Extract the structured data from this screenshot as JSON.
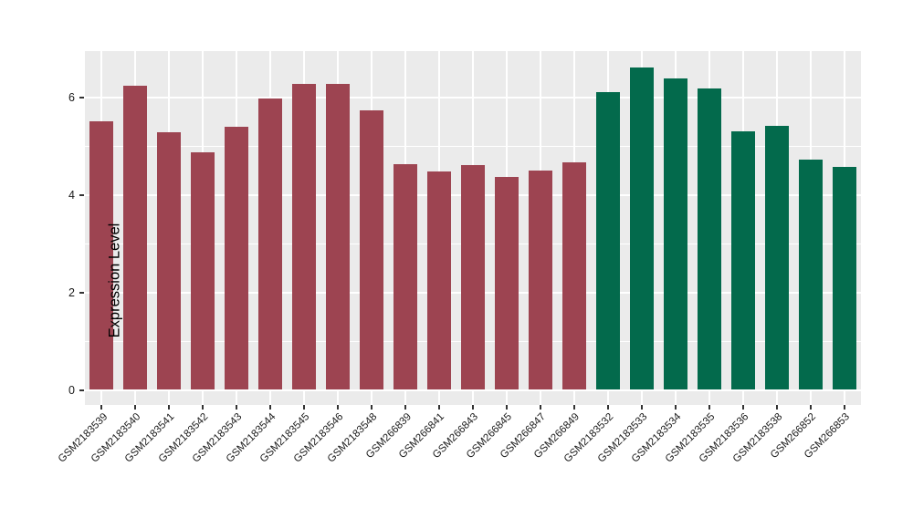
{
  "chart_data": {
    "type": "bar",
    "title": "",
    "xlabel": "",
    "ylabel": "Expression Level",
    "yticks": [
      0,
      2,
      4,
      6
    ],
    "yticks_minor": [
      1,
      3,
      5
    ],
    "ylim_panel": [
      -0.31,
      6.95
    ],
    "panel_bg": "#EBEBEB",
    "grid_color": "#FFFFFF",
    "tick_color": "#333333",
    "legend": "none",
    "group_colors": {
      "group1": "#9D4451",
      "group2": "#036A4C"
    },
    "bars": [
      {
        "label": "GSM2183539",
        "value": 5.51,
        "group": "group1"
      },
      {
        "label": "GSM2183540",
        "value": 6.23,
        "group": "group1"
      },
      {
        "label": "GSM2183541",
        "value": 5.28,
        "group": "group1"
      },
      {
        "label": "GSM2183542",
        "value": 4.87,
        "group": "group1"
      },
      {
        "label": "GSM2183543",
        "value": 5.4,
        "group": "group1"
      },
      {
        "label": "GSM2183544",
        "value": 5.98,
        "group": "group1"
      },
      {
        "label": "GSM2183545",
        "value": 6.28,
        "group": "group1"
      },
      {
        "label": "GSM2183546",
        "value": 6.28,
        "group": "group1"
      },
      {
        "label": "GSM2183548",
        "value": 5.74,
        "group": "group1"
      },
      {
        "label": "GSM266839",
        "value": 4.63,
        "group": "group1"
      },
      {
        "label": "GSM266841",
        "value": 4.48,
        "group": "group1"
      },
      {
        "label": "GSM266843",
        "value": 4.61,
        "group": "group1"
      },
      {
        "label": "GSM266845",
        "value": 4.36,
        "group": "group1"
      },
      {
        "label": "GSM266847",
        "value": 4.49,
        "group": "group1"
      },
      {
        "label": "GSM266849",
        "value": 4.66,
        "group": "group1"
      },
      {
        "label": "GSM2183532",
        "value": 6.11,
        "group": "group2"
      },
      {
        "label": "GSM2183533",
        "value": 6.61,
        "group": "group2"
      },
      {
        "label": "GSM2183534",
        "value": 6.39,
        "group": "group2"
      },
      {
        "label": "GSM2183535",
        "value": 6.18,
        "group": "group2"
      },
      {
        "label": "GSM2183536",
        "value": 5.31,
        "group": "group2"
      },
      {
        "label": "GSM2183538",
        "value": 5.41,
        "group": "group2"
      },
      {
        "label": "GSM266852",
        "value": 4.72,
        "group": "group2"
      },
      {
        "label": "GSM266853",
        "value": 4.57,
        "group": "group2"
      }
    ]
  }
}
